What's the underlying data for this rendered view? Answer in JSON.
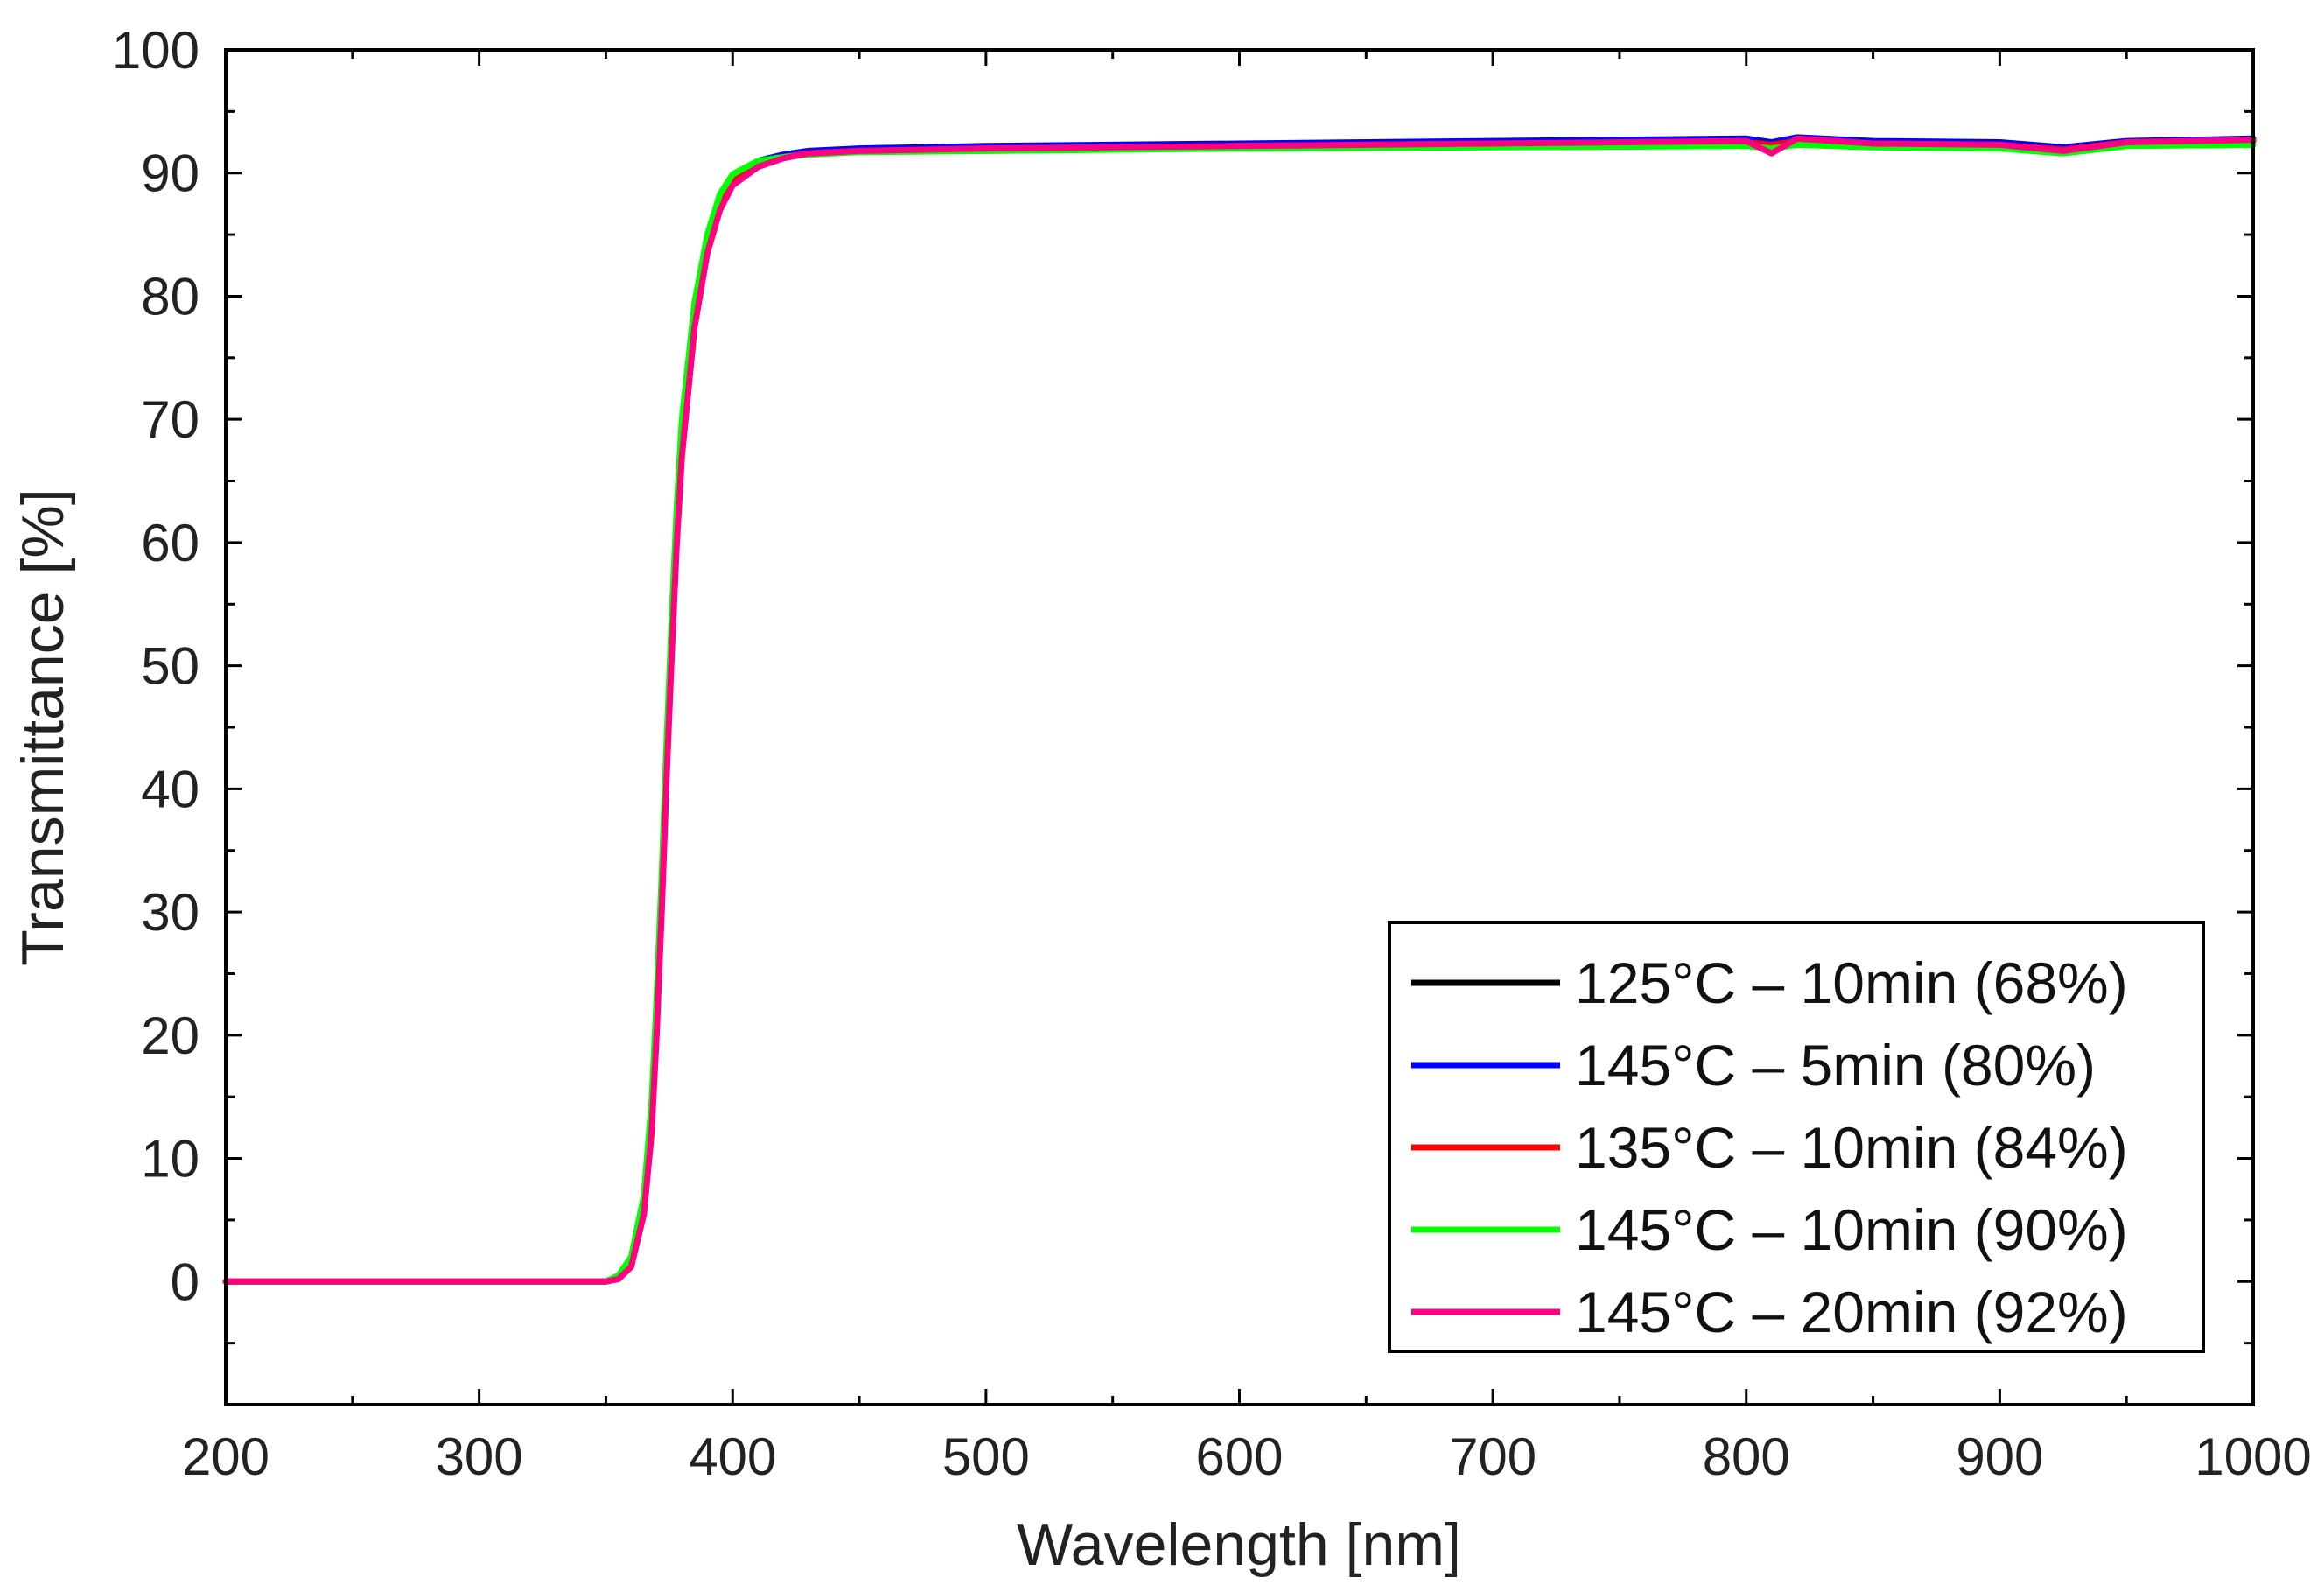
{
  "chart_data": {
    "type": "line",
    "title": "",
    "xlabel": "Wavelength [nm]",
    "ylabel": "Transmittance [%]",
    "xlim": [
      200,
      1000
    ],
    "ylim": [
      -10,
      100
    ],
    "xticks": [
      200,
      300,
      400,
      500,
      600,
      700,
      800,
      900,
      1000
    ],
    "yticks": [
      0,
      10,
      20,
      30,
      40,
      50,
      60,
      70,
      80,
      90,
      100
    ],
    "grid": false,
    "legend_position": "bottom-right",
    "series": [
      {
        "name": "125°C – 10min (68%)",
        "color": "#000000",
        "x": [
          200,
          300,
          350,
          355,
          360,
          365,
          368,
          370,
          372,
          374,
          376,
          378,
          380,
          385,
          390,
          395,
          400,
          410,
          420,
          430,
          450,
          500,
          600,
          700,
          800,
          810,
          820,
          850,
          900,
          925,
          950,
          1000
        ],
        "y": [
          0,
          0,
          0,
          0.3,
          1.5,
          6,
          13,
          21,
          31,
          42,
          52,
          61,
          68,
          78,
          84,
          87.5,
          89.3,
          90.8,
          91.3,
          91.6,
          91.8,
          92,
          92.2,
          92.4,
          92.5,
          92.4,
          92.6,
          92.4,
          92.3,
          91.9,
          92.5,
          92.6
        ]
      },
      {
        "name": "145°C – 5min (80%)",
        "color": "#0000ff",
        "x": [
          200,
          300,
          350,
          355,
          360,
          365,
          368,
          370,
          372,
          374,
          376,
          378,
          380,
          385,
          390,
          395,
          400,
          410,
          420,
          430,
          450,
          500,
          600,
          700,
          800,
          810,
          820,
          850,
          900,
          925,
          950,
          1000
        ],
        "y": [
          0,
          0,
          0,
          0.3,
          1.4,
          5.8,
          12.5,
          20.5,
          30.5,
          41.5,
          51.5,
          60.5,
          67.5,
          77.8,
          84,
          87.5,
          89.4,
          91,
          91.5,
          91.8,
          92,
          92.2,
          92.4,
          92.6,
          92.8,
          92.5,
          92.9,
          92.6,
          92.5,
          92.1,
          92.6,
          92.8
        ]
      },
      {
        "name": "135°C – 10min (84%)",
        "color": "#ff0000",
        "x": [
          200,
          300,
          350,
          355,
          360,
          365,
          368,
          370,
          372,
          374,
          376,
          378,
          380,
          385,
          390,
          395,
          400,
          410,
          420,
          430,
          450,
          500,
          600,
          700,
          800,
          810,
          820,
          850,
          900,
          925,
          950,
          1000
        ],
        "y": [
          0,
          0,
          0,
          0.3,
          1.5,
          6,
          13,
          21,
          31,
          42,
          52,
          61,
          68,
          78,
          84,
          87.5,
          89.3,
          90.8,
          91.3,
          91.6,
          91.8,
          92,
          92.2,
          92.4,
          92.5,
          92.3,
          92.6,
          92.4,
          92.3,
          91.9,
          92.5,
          92.6
        ]
      },
      {
        "name": "145°C – 10min (90%)",
        "color": "#00ff00",
        "x": [
          200,
          300,
          350,
          355,
          360,
          365,
          368,
          370,
          372,
          374,
          376,
          378,
          380,
          385,
          390,
          395,
          400,
          410,
          420,
          430,
          450,
          500,
          600,
          700,
          800,
          810,
          820,
          850,
          900,
          925,
          950,
          1000
        ],
        "y": [
          0,
          0,
          0,
          0.5,
          2,
          7,
          14.5,
          23,
          33,
          44,
          54,
          63,
          70,
          79.5,
          85,
          88.3,
          89.9,
          91,
          91.3,
          91.5,
          91.7,
          91.8,
          92,
          92.1,
          92.2,
          92,
          92.3,
          92.1,
          92,
          91.6,
          92.2,
          92.3
        ]
      },
      {
        "name": "145°C – 20min (92%)",
        "color": "#ff0080",
        "x": [
          200,
          300,
          350,
          355,
          360,
          365,
          368,
          370,
          372,
          374,
          376,
          378,
          380,
          385,
          390,
          395,
          400,
          410,
          420,
          430,
          450,
          500,
          600,
          700,
          800,
          810,
          820,
          850,
          900,
          925,
          950,
          1000
        ],
        "y": [
          0,
          0,
          0,
          0.2,
          1.2,
          5.5,
          12,
          20,
          30,
          41,
          51,
          60,
          67,
          77.5,
          83.5,
          87,
          89,
          90.5,
          91.2,
          91.6,
          91.8,
          92,
          92.2,
          92.4,
          92.6,
          91.6,
          92.8,
          92.4,
          92.3,
          91.8,
          92.5,
          92.7
        ]
      }
    ]
  }
}
